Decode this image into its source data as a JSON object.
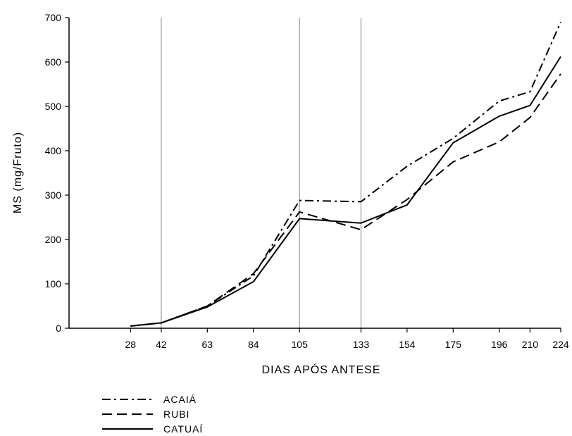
{
  "chart_data": {
    "type": "line",
    "title": "",
    "xlabel": "DIAS APÓS ANTESE",
    "ylabel": "MS (mg/Fruto)",
    "xlim": [
      0,
      224
    ],
    "ylim": [
      0,
      700
    ],
    "yticks": [
      0,
      100,
      200,
      300,
      400,
      500,
      600,
      700
    ],
    "x": [
      28,
      42,
      63,
      84,
      105,
      133,
      154,
      175,
      196,
      210,
      224
    ],
    "xticks": [
      28,
      42,
      63,
      84,
      105,
      133,
      154,
      175,
      196,
      210,
      224
    ],
    "reference_lines_x": [
      42,
      105,
      133
    ],
    "grid": false,
    "legend_position": "bottom-left",
    "series": [
      {
        "name": "ACAIÁ",
        "style": "dash-dot",
        "color": "#000000",
        "values": [
          5,
          12,
          50,
          118,
          288,
          285,
          365,
          428,
          512,
          533,
          690
        ]
      },
      {
        "name": "RUBI",
        "style": "dashed",
        "color": "#000000",
        "values": [
          5,
          12,
          50,
          123,
          262,
          222,
          290,
          375,
          420,
          475,
          573
        ]
      },
      {
        "name": "CATUAÍ",
        "style": "solid",
        "color": "#000000",
        "values": [
          5,
          12,
          48,
          105,
          247,
          237,
          278,
          418,
          478,
          502,
          612
        ]
      }
    ]
  }
}
